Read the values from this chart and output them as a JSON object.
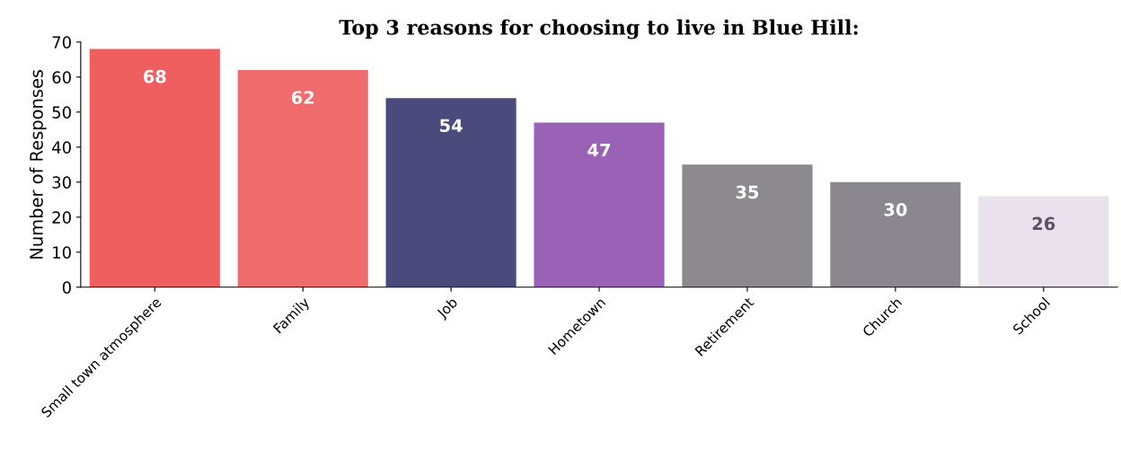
{
  "chart_data": {
    "type": "bar",
    "title": "Top 3 reasons for choosing to live in Blue Hill:",
    "ylabel": "Number of Responses",
    "categories": [
      "Small town atmosphere",
      "Family",
      "Job",
      "Hometown",
      "Retirement",
      "Church",
      "School"
    ],
    "values": [
      68,
      62,
      54,
      47,
      35,
      30,
      26
    ],
    "colors": [
      "#ef5f5f",
      "#f06b6b",
      "#4b4a7c",
      "#9a62b6",
      "#8c8a8e",
      "#8a888e",
      "#e9e1ec"
    ],
    "ylim": [
      0,
      70
    ],
    "yticks": [
      0,
      10,
      20,
      30,
      40,
      50,
      60,
      70
    ],
    "grid": false,
    "data_labels": true
  }
}
